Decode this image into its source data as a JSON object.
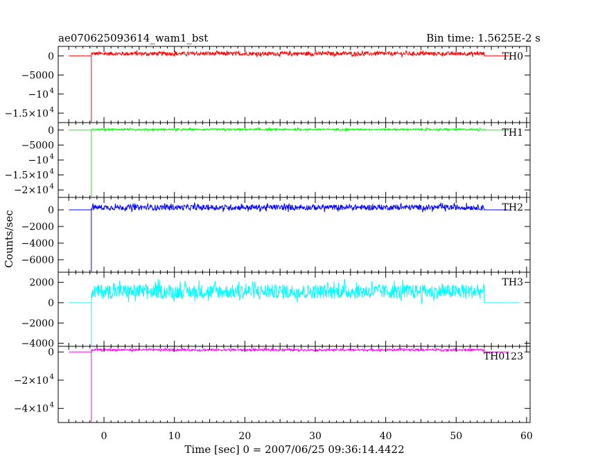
{
  "header": {
    "title": "ae070625093614_wam1_bst",
    "bin_time": "Bin time: 1.5625E-2 s"
  },
  "chart_data": {
    "type": "line",
    "ylabel": "Counts/sec",
    "xlabel": "Time [sec] 0 = 2007/06/25 09:36:14.4422",
    "xlim": [
      -6.5,
      60.5
    ],
    "x_ticks": [
      "0",
      "10",
      "20",
      "30",
      "40",
      "50",
      "60"
    ],
    "trigger_x": -1.8,
    "end_x": 54.0,
    "panels": [
      {
        "name": "TH0",
        "color": "#ff0000",
        "ylim": [
          -17500,
          2500
        ],
        "baseline": 0,
        "level": 600,
        "noise": 500,
        "spike_min": -17500,
        "data_end_x": 57.5,
        "yticks": [
          {
            "v": 0,
            "label": "0"
          },
          {
            "v": -5000,
            "label": "−5000"
          },
          {
            "v": -10000,
            "label": "−10",
            "exp": "4"
          },
          {
            "v": -15000,
            "label": "−1.5×10",
            "exp": "4"
          }
        ]
      },
      {
        "name": "TH1",
        "color": "#00ff00",
        "ylim": [
          -22500,
          2500
        ],
        "baseline": 0,
        "level": 200,
        "noise": 300,
        "spike_min": -22500,
        "data_end_x": 57.5,
        "yticks": [
          {
            "v": 0,
            "label": "0"
          },
          {
            "v": -5000,
            "label": "−5000"
          },
          {
            "v": -10000,
            "label": "−10",
            "exp": "4"
          },
          {
            "v": -15000,
            "label": "−1.5×10",
            "exp": "4"
          },
          {
            "v": -20000,
            "label": "−2×10",
            "exp": "4"
          }
        ]
      },
      {
        "name": "TH2",
        "color": "#0000ff",
        "ylim": [
          -7500,
          1500
        ],
        "baseline": 0,
        "level": 300,
        "noise": 320,
        "spike_min": -7500,
        "data_end_x": 57.5,
        "yticks": [
          {
            "v": 0,
            "label": "0"
          },
          {
            "v": -2000,
            "label": "−2000"
          },
          {
            "v": -4000,
            "label": "−4000"
          },
          {
            "v": -6000,
            "label": "−6000"
          }
        ]
      },
      {
        "name": "TH3",
        "color": "#00ffff",
        "ylim": [
          -4300,
          3000
        ],
        "baseline": 0,
        "level": 1100,
        "noise": 700,
        "spike_min": -4300,
        "data_end_x": 59.0,
        "yticks": [
          {
            "v": 2000,
            "label": "2000"
          },
          {
            "v": 0,
            "label": "0"
          },
          {
            "v": -2000,
            "label": "−2000"
          },
          {
            "v": -4000,
            "label": "−4000"
          }
        ]
      },
      {
        "name": "TH0123",
        "color": "#ff00ff",
        "ylim": [
          -50000,
          4000
        ],
        "baseline": 0,
        "level": 1500,
        "noise": 700,
        "spike_min": -50000,
        "data_end_x": 57.5,
        "yticks": [
          {
            "v": 0,
            "label": "0"
          },
          {
            "v": -20000,
            "label": "−2×10",
            "exp": "4"
          },
          {
            "v": -40000,
            "label": "−4×10",
            "exp": "4"
          }
        ]
      }
    ]
  }
}
